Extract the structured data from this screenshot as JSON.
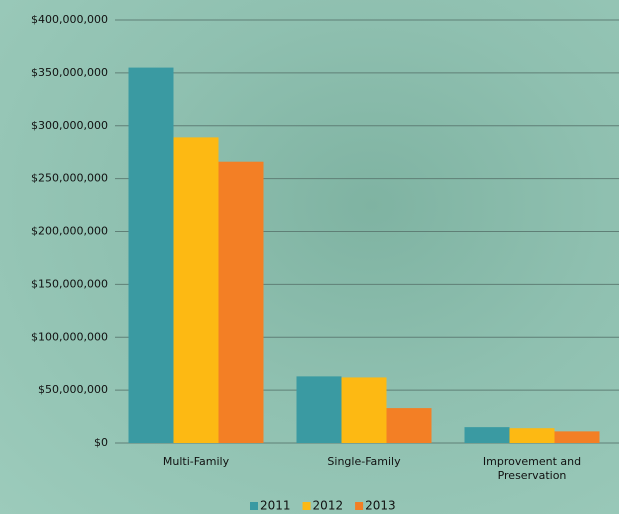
{
  "chart_data": {
    "type": "bar",
    "categories": [
      "Multi-Family",
      "Single-Family",
      "Improvement and Preservation"
    ],
    "series": [
      {
        "name": "2011",
        "color": "#3a9aa2",
        "values": [
          355000000,
          63000000,
          15000000
        ]
      },
      {
        "name": "2012",
        "color": "#fdb913",
        "values": [
          289000000,
          62000000,
          14000000
        ]
      },
      {
        "name": "2013",
        "color": "#f37f25",
        "values": [
          266000000,
          33000000,
          11000000
        ]
      }
    ],
    "ylim": [
      0,
      400000000
    ],
    "yticks": [
      {
        "value": 0,
        "label": "$0"
      },
      {
        "value": 50000000,
        "label": "$50,000,000"
      },
      {
        "value": 100000000,
        "label": "$100,000,000"
      },
      {
        "value": 150000000,
        "label": "$150,000,000"
      },
      {
        "value": 200000000,
        "label": "$200,000,000"
      },
      {
        "value": 250000000,
        "label": "$250,000,000"
      },
      {
        "value": 300000000,
        "label": "$300,000,000"
      },
      {
        "value": 350000000,
        "label": "$350,000,000"
      },
      {
        "value": 400000000,
        "label": "$400,000,000"
      }
    ],
    "grid": true,
    "legend": "bottom"
  }
}
